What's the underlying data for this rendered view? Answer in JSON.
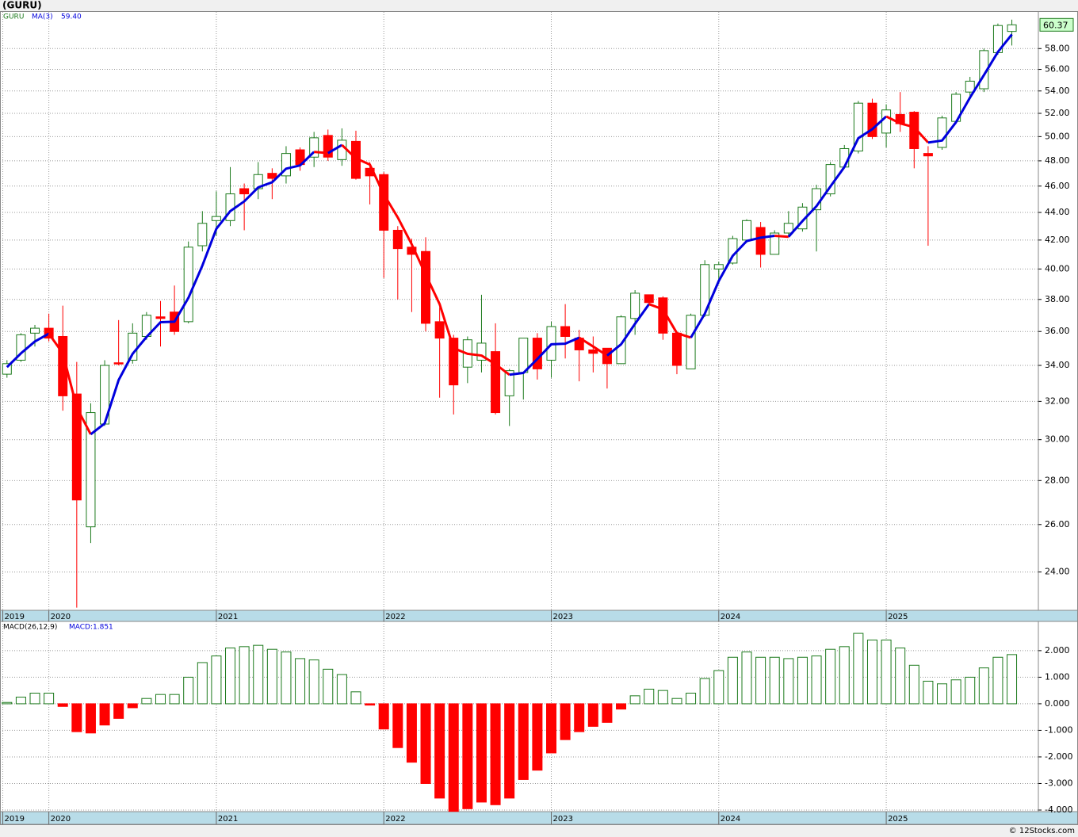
{
  "header": {
    "title": "(GURU)"
  },
  "footer": "© 12Stocks.com",
  "chart_data": [
    {
      "type": "candlestick",
      "symbol": "GURU",
      "ma_name": "MA(3)",
      "ma_value_label": "59.40",
      "last_label": "60.37",
      "x": [
        0,
        1,
        2,
        3,
        4,
        5,
        6,
        7,
        8,
        9,
        10,
        11,
        12,
        13,
        14,
        15,
        16,
        17,
        18,
        19,
        20,
        21,
        22,
        23,
        24,
        25,
        26,
        27,
        28,
        29,
        30,
        31,
        32,
        33,
        34,
        35,
        36,
        37,
        38,
        39,
        40,
        41,
        42,
        43,
        44,
        45,
        46,
        47,
        48,
        49,
        50,
        51,
        52,
        53,
        54,
        55,
        56,
        57,
        58,
        59,
        60,
        61,
        62,
        63,
        64,
        65,
        66,
        67,
        68,
        69,
        70,
        71,
        72
      ],
      "open": [
        33.5,
        34.3,
        35.9,
        36.2,
        35.7,
        32.4,
        25.9,
        30.8,
        34.15,
        34.3,
        35.7,
        36.9,
        37.2,
        36.6,
        41.6,
        43.4,
        43.4,
        45.8,
        45.8,
        47.0,
        46.8,
        48.9,
        48.3,
        50.1,
        48.1,
        49.6,
        47.4,
        46.9,
        42.7,
        41.5,
        41.2,
        36.6,
        35.6,
        33.9,
        34.3,
        34.8,
        32.3,
        33.6,
        35.6,
        34.3,
        36.3,
        35.6,
        34.9,
        35.0,
        34.1,
        36.8,
        38.3,
        38.1,
        35.9,
        33.8,
        37.0,
        40.0,
        40.4,
        42.0,
        42.9,
        41.0,
        42.5,
        42.8,
        44.2,
        45.4,
        47.5,
        48.8,
        52.9,
        50.3,
        51.9,
        52.1,
        48.6,
        49.1,
        51.3,
        53.9,
        54.2,
        57.6,
        59.7
      ],
      "high": [
        34.3,
        35.9,
        36.4,
        37.1,
        37.6,
        34.2,
        31.9,
        34.3,
        36.7,
        36.5,
        37.2,
        37.9,
        38.9,
        41.9,
        44.1,
        45.6,
        47.5,
        46.2,
        47.9,
        47.4,
        49.2,
        49.1,
        50.4,
        50.6,
        50.7,
        50.5,
        47.9,
        47.1,
        43.0,
        42.1,
        42.2,
        37.5,
        35.8,
        35.7,
        38.3,
        36.5,
        33.8,
        35.6,
        35.9,
        36.6,
        37.7,
        36.1,
        35.7,
        35.0,
        37.0,
        38.6,
        38.3,
        38.2,
        36.0,
        37.1,
        40.6,
        40.5,
        42.3,
        43.5,
        43.3,
        42.7,
        44.1,
        44.7,
        46.1,
        47.9,
        49.3,
        53.1,
        53.3,
        52.8,
        53.9,
        52.2,
        49.2,
        51.8,
        53.9,
        55.3,
        58.0,
        60.5,
        60.9
      ],
      "low": [
        33.3,
        34.2,
        35.1,
        35.4,
        31.5,
        22.6,
        25.2,
        30.7,
        34.0,
        34.1,
        35.5,
        35.1,
        35.8,
        36.5,
        41.2,
        42.3,
        43.0,
        42.7,
        45.0,
        45.0,
        46.2,
        47.2,
        47.5,
        48.0,
        47.6,
        46.5,
        44.6,
        39.4,
        38.0,
        37.2,
        36.0,
        32.2,
        31.3,
        33.0,
        33.6,
        31.3,
        30.7,
        32.1,
        33.2,
        33.3,
        34.4,
        33.1,
        33.6,
        32.7,
        34.1,
        35.8,
        37.6,
        35.5,
        33.5,
        33.8,
        36.9,
        39.0,
        40.3,
        41.8,
        40.1,
        41.0,
        42.3,
        42.6,
        41.2,
        45.2,
        47.4,
        48.6,
        49.8,
        49.1,
        50.4,
        47.4,
        41.6,
        48.9,
        51.1,
        53.5,
        53.9,
        57.4,
        58.3
      ],
      "close": [
        34.1,
        35.8,
        36.2,
        35.6,
        32.3,
        27.1,
        31.4,
        34.0,
        34.1,
        35.9,
        37.0,
        36.8,
        36.0,
        41.5,
        43.2,
        43.7,
        45.4,
        45.4,
        46.9,
        46.6,
        48.6,
        47.7,
        49.9,
        48.3,
        49.7,
        46.6,
        46.8,
        42.7,
        41.4,
        41.0,
        36.5,
        35.6,
        32.9,
        35.5,
        35.3,
        31.4,
        33.7,
        35.6,
        33.8,
        36.3,
        35.7,
        34.9,
        34.7,
        34.1,
        36.9,
        38.4,
        37.8,
        35.9,
        34.0,
        37.0,
        40.3,
        40.3,
        42.1,
        43.4,
        41.0,
        42.5,
        43.2,
        44.4,
        45.8,
        47.7,
        49.0,
        52.9,
        50.0,
        52.3,
        51.1,
        49.0,
        48.4,
        51.6,
        53.7,
        54.9,
        57.8,
        60.3,
        60.37
      ],
      "ma": [
        33.9,
        34.7,
        35.4,
        35.87,
        34.7,
        31.67,
        30.27,
        30.83,
        33.17,
        34.67,
        35.67,
        36.57,
        36.6,
        38.1,
        40.23,
        42.8,
        44.1,
        44.83,
        45.9,
        46.3,
        47.37,
        47.63,
        48.73,
        48.63,
        49.3,
        48.2,
        47.7,
        45.37,
        43.63,
        41.7,
        39.63,
        37.7,
        35.0,
        34.67,
        34.57,
        34.07,
        33.47,
        33.57,
        34.37,
        35.23,
        35.27,
        35.63,
        35.1,
        34.57,
        35.23,
        36.47,
        37.7,
        37.37,
        35.9,
        35.63,
        37.1,
        39.2,
        40.9,
        41.93,
        42.17,
        42.3,
        42.23,
        43.37,
        44.47,
        45.97,
        47.5,
        49.87,
        50.63,
        51.73,
        51.13,
        50.8,
        49.5,
        49.67,
        51.23,
        53.4,
        55.47,
        57.67,
        59.4
      ],
      "up_color": "#1c7a1c",
      "down_color": "#ff0000",
      "ma_up_color": "#0000dd",
      "ma_down_color": "#ff0000",
      "log_scale": true,
      "grid": true,
      "xlim": [
        -0.5,
        73.9
      ],
      "ylim": [
        22.5,
        61.7
      ],
      "xticks": [
        {
          "value": -0.3,
          "label": "2019"
        },
        {
          "value": 3,
          "label": "2020"
        },
        {
          "value": 15,
          "label": "2021"
        },
        {
          "value": 27,
          "label": "2022"
        },
        {
          "value": 39,
          "label": "2023"
        },
        {
          "value": 51,
          "label": "2024"
        },
        {
          "value": 63,
          "label": "2025"
        }
      ],
      "yticks": [
        {
          "value": 24,
          "label": "24.00"
        },
        {
          "value": 26,
          "label": "26.00"
        },
        {
          "value": 28,
          "label": "28.00"
        },
        {
          "value": 30,
          "label": "30.00"
        },
        {
          "value": 32,
          "label": "32.00"
        },
        {
          "value": 34,
          "label": "34.00"
        },
        {
          "value": 36,
          "label": "36.00"
        },
        {
          "value": 38,
          "label": "38.00"
        },
        {
          "value": 40,
          "label": "40.00"
        },
        {
          "value": 42,
          "label": "42.00"
        },
        {
          "value": 44,
          "label": "44.00"
        },
        {
          "value": 46,
          "label": "46.00"
        },
        {
          "value": 48,
          "label": "48.00"
        },
        {
          "value": 50,
          "label": "50.00"
        },
        {
          "value": 52,
          "label": "52.00"
        },
        {
          "value": 54,
          "label": "54.00"
        },
        {
          "value": 56,
          "label": "56.00"
        },
        {
          "value": 58,
          "label": "58.00"
        }
      ]
    },
    {
      "type": "bar",
      "title": "MACD(26,12,9)",
      "value_label": "MACD:1.851",
      "x": [
        0,
        1,
        2,
        3,
        4,
        5,
        6,
        7,
        8,
        9,
        10,
        11,
        12,
        13,
        14,
        15,
        16,
        17,
        18,
        19,
        20,
        21,
        22,
        23,
        24,
        25,
        26,
        27,
        28,
        29,
        30,
        31,
        32,
        33,
        34,
        35,
        36,
        37,
        38,
        39,
        40,
        41,
        42,
        43,
        44,
        45,
        46,
        47,
        48,
        49,
        50,
        51,
        52,
        53,
        54,
        55,
        56,
        57,
        58,
        59,
        60,
        61,
        62,
        63,
        64,
        65,
        66,
        67,
        68,
        69,
        70,
        71,
        72
      ],
      "values": [
        0.05,
        0.25,
        0.4,
        0.4,
        -0.1,
        -1.05,
        -1.1,
        -0.8,
        -0.55,
        -0.15,
        0.2,
        0.35,
        0.35,
        1.0,
        1.55,
        1.8,
        2.1,
        2.15,
        2.2,
        2.05,
        1.95,
        1.7,
        1.65,
        1.3,
        1.1,
        0.45,
        -0.05,
        -0.95,
        -1.65,
        -2.2,
        -3.0,
        -3.55,
        -4.05,
        -3.95,
        -3.7,
        -3.8,
        -3.55,
        -2.85,
        -2.5,
        -1.85,
        -1.35,
        -1.05,
        -0.85,
        -0.7,
        -0.2,
        0.3,
        0.55,
        0.5,
        0.2,
        0.4,
        0.95,
        1.25,
        1.75,
        1.95,
        1.75,
        1.75,
        1.7,
        1.75,
        1.8,
        2.05,
        2.15,
        2.65,
        2.4,
        2.4,
        2.1,
        1.45,
        0.85,
        0.75,
        0.9,
        1.0,
        1.35,
        1.75,
        1.851
      ],
      "up_color": "#1c7a1c",
      "down_color": "#ff0000",
      "grid": true,
      "xlim": [
        -0.5,
        73.9
      ],
      "ylim": [
        -4.06,
        3.1
      ],
      "xticks": [
        {
          "value": -0.3,
          "label": "2019"
        },
        {
          "value": 3,
          "label": "2020"
        },
        {
          "value": 15,
          "label": "2021"
        },
        {
          "value": 27,
          "label": "2022"
        },
        {
          "value": 39,
          "label": "2023"
        },
        {
          "value": 51,
          "label": "2024"
        },
        {
          "value": 63,
          "label": "2025"
        }
      ],
      "yticks": [
        {
          "value": 2,
          "label": "2.000"
        },
        {
          "value": 1,
          "label": "1.000"
        },
        {
          "value": 0,
          "label": "0.000"
        },
        {
          "value": -1,
          "label": "-1.000"
        },
        {
          "value": -2,
          "label": "-2.000"
        },
        {
          "value": -3,
          "label": "-3.000"
        },
        {
          "value": -4,
          "label": "-4.000"
        }
      ]
    }
  ]
}
